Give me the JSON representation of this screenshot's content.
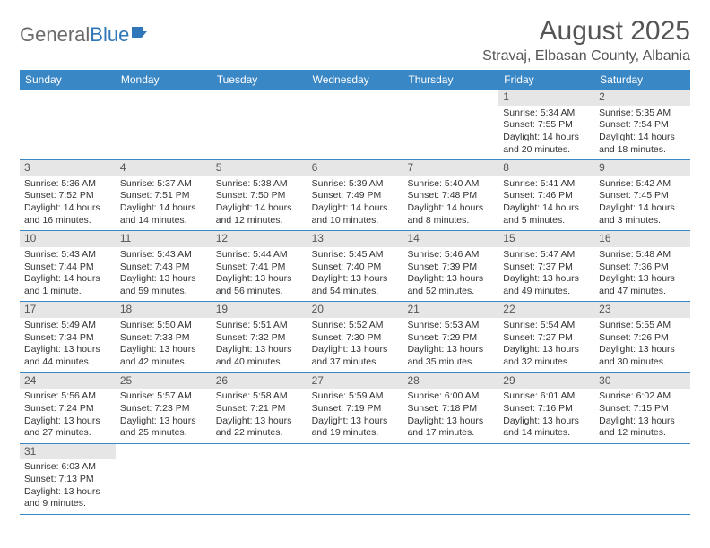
{
  "logo": {
    "text1": "General",
    "text2": "Blue"
  },
  "title": "August 2025",
  "location": "Stravaj, Elbasan County, Albania",
  "colors": {
    "header_bar": "#3a87c6",
    "daynum_bg": "#e6e6e6",
    "text": "#333333",
    "border": "#3a87c6"
  },
  "weekdays": [
    "Sunday",
    "Monday",
    "Tuesday",
    "Wednesday",
    "Thursday",
    "Friday",
    "Saturday"
  ],
  "weeks": [
    [
      null,
      null,
      null,
      null,
      null,
      {
        "n": "1",
        "sr": "Sunrise: 5:34 AM",
        "ss": "Sunset: 7:55 PM",
        "dl": "Daylight: 14 hours and 20 minutes."
      },
      {
        "n": "2",
        "sr": "Sunrise: 5:35 AM",
        "ss": "Sunset: 7:54 PM",
        "dl": "Daylight: 14 hours and 18 minutes."
      }
    ],
    [
      {
        "n": "3",
        "sr": "Sunrise: 5:36 AM",
        "ss": "Sunset: 7:52 PM",
        "dl": "Daylight: 14 hours and 16 minutes."
      },
      {
        "n": "4",
        "sr": "Sunrise: 5:37 AM",
        "ss": "Sunset: 7:51 PM",
        "dl": "Daylight: 14 hours and 14 minutes."
      },
      {
        "n": "5",
        "sr": "Sunrise: 5:38 AM",
        "ss": "Sunset: 7:50 PM",
        "dl": "Daylight: 14 hours and 12 minutes."
      },
      {
        "n": "6",
        "sr": "Sunrise: 5:39 AM",
        "ss": "Sunset: 7:49 PM",
        "dl": "Daylight: 14 hours and 10 minutes."
      },
      {
        "n": "7",
        "sr": "Sunrise: 5:40 AM",
        "ss": "Sunset: 7:48 PM",
        "dl": "Daylight: 14 hours and 8 minutes."
      },
      {
        "n": "8",
        "sr": "Sunrise: 5:41 AM",
        "ss": "Sunset: 7:46 PM",
        "dl": "Daylight: 14 hours and 5 minutes."
      },
      {
        "n": "9",
        "sr": "Sunrise: 5:42 AM",
        "ss": "Sunset: 7:45 PM",
        "dl": "Daylight: 14 hours and 3 minutes."
      }
    ],
    [
      {
        "n": "10",
        "sr": "Sunrise: 5:43 AM",
        "ss": "Sunset: 7:44 PM",
        "dl": "Daylight: 14 hours and 1 minute."
      },
      {
        "n": "11",
        "sr": "Sunrise: 5:43 AM",
        "ss": "Sunset: 7:43 PM",
        "dl": "Daylight: 13 hours and 59 minutes."
      },
      {
        "n": "12",
        "sr": "Sunrise: 5:44 AM",
        "ss": "Sunset: 7:41 PM",
        "dl": "Daylight: 13 hours and 56 minutes."
      },
      {
        "n": "13",
        "sr": "Sunrise: 5:45 AM",
        "ss": "Sunset: 7:40 PM",
        "dl": "Daylight: 13 hours and 54 minutes."
      },
      {
        "n": "14",
        "sr": "Sunrise: 5:46 AM",
        "ss": "Sunset: 7:39 PM",
        "dl": "Daylight: 13 hours and 52 minutes."
      },
      {
        "n": "15",
        "sr": "Sunrise: 5:47 AM",
        "ss": "Sunset: 7:37 PM",
        "dl": "Daylight: 13 hours and 49 minutes."
      },
      {
        "n": "16",
        "sr": "Sunrise: 5:48 AM",
        "ss": "Sunset: 7:36 PM",
        "dl": "Daylight: 13 hours and 47 minutes."
      }
    ],
    [
      {
        "n": "17",
        "sr": "Sunrise: 5:49 AM",
        "ss": "Sunset: 7:34 PM",
        "dl": "Daylight: 13 hours and 44 minutes."
      },
      {
        "n": "18",
        "sr": "Sunrise: 5:50 AM",
        "ss": "Sunset: 7:33 PM",
        "dl": "Daylight: 13 hours and 42 minutes."
      },
      {
        "n": "19",
        "sr": "Sunrise: 5:51 AM",
        "ss": "Sunset: 7:32 PM",
        "dl": "Daylight: 13 hours and 40 minutes."
      },
      {
        "n": "20",
        "sr": "Sunrise: 5:52 AM",
        "ss": "Sunset: 7:30 PM",
        "dl": "Daylight: 13 hours and 37 minutes."
      },
      {
        "n": "21",
        "sr": "Sunrise: 5:53 AM",
        "ss": "Sunset: 7:29 PM",
        "dl": "Daylight: 13 hours and 35 minutes."
      },
      {
        "n": "22",
        "sr": "Sunrise: 5:54 AM",
        "ss": "Sunset: 7:27 PM",
        "dl": "Daylight: 13 hours and 32 minutes."
      },
      {
        "n": "23",
        "sr": "Sunrise: 5:55 AM",
        "ss": "Sunset: 7:26 PM",
        "dl": "Daylight: 13 hours and 30 minutes."
      }
    ],
    [
      {
        "n": "24",
        "sr": "Sunrise: 5:56 AM",
        "ss": "Sunset: 7:24 PM",
        "dl": "Daylight: 13 hours and 27 minutes."
      },
      {
        "n": "25",
        "sr": "Sunrise: 5:57 AM",
        "ss": "Sunset: 7:23 PM",
        "dl": "Daylight: 13 hours and 25 minutes."
      },
      {
        "n": "26",
        "sr": "Sunrise: 5:58 AM",
        "ss": "Sunset: 7:21 PM",
        "dl": "Daylight: 13 hours and 22 minutes."
      },
      {
        "n": "27",
        "sr": "Sunrise: 5:59 AM",
        "ss": "Sunset: 7:19 PM",
        "dl": "Daylight: 13 hours and 19 minutes."
      },
      {
        "n": "28",
        "sr": "Sunrise: 6:00 AM",
        "ss": "Sunset: 7:18 PM",
        "dl": "Daylight: 13 hours and 17 minutes."
      },
      {
        "n": "29",
        "sr": "Sunrise: 6:01 AM",
        "ss": "Sunset: 7:16 PM",
        "dl": "Daylight: 13 hours and 14 minutes."
      },
      {
        "n": "30",
        "sr": "Sunrise: 6:02 AM",
        "ss": "Sunset: 7:15 PM",
        "dl": "Daylight: 13 hours and 12 minutes."
      }
    ],
    [
      {
        "n": "31",
        "sr": "Sunrise: 6:03 AM",
        "ss": "Sunset: 7:13 PM",
        "dl": "Daylight: 13 hours and 9 minutes."
      },
      null,
      null,
      null,
      null,
      null,
      null
    ]
  ]
}
